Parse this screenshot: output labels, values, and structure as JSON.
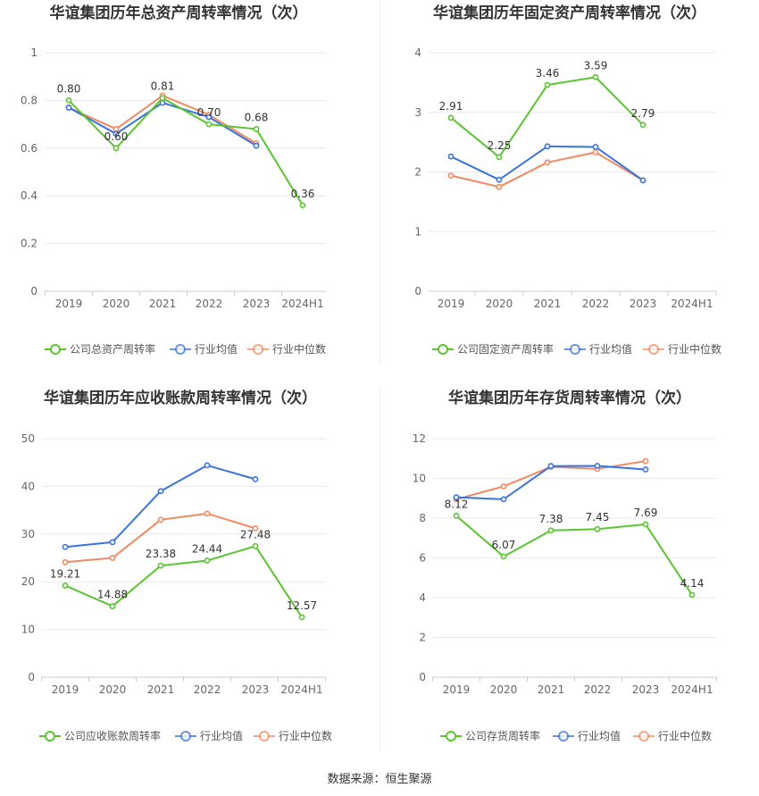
{
  "source_text": "数据来源：恒生聚源",
  "colors": {
    "company": "#5BC531",
    "avg": "#3A73DD",
    "median": "#F28A61"
  },
  "chart_data": [
    {
      "type": "line",
      "title": "华谊集团历年总资产周转率情况（次）",
      "categories": [
        "2019",
        "2020",
        "2021",
        "2022",
        "2023",
        "2024H1"
      ],
      "ylim": [
        0,
        1
      ],
      "yticks": [
        "0",
        "0.2",
        "0.4",
        "0.6",
        "0.8",
        "1"
      ],
      "ytick_values": [
        0,
        0.2,
        0.4,
        0.6,
        0.8,
        1
      ],
      "series": [
        {
          "name": "公司总资产周转率",
          "role": "company",
          "values": [
            0.8,
            0.6,
            0.81,
            0.7,
            0.68,
            0.36
          ],
          "labels": [
            "0.80",
            "0.60",
            "0.81",
            "0.70",
            "0.68",
            "0.36"
          ]
        },
        {
          "name": "行业均值",
          "role": "avg",
          "values": [
            0.77,
            0.66,
            0.79,
            0.73,
            0.61,
            null
          ]
        },
        {
          "name": "行业中位数",
          "role": "median",
          "values": [
            0.77,
            0.68,
            0.82,
            0.74,
            0.62,
            null
          ]
        }
      ]
    },
    {
      "type": "line",
      "title": "华谊集团历年固定资产周转率情况（次）",
      "categories": [
        "2019",
        "2020",
        "2021",
        "2022",
        "2023",
        "2024H1"
      ],
      "ylim": [
        0,
        4
      ],
      "yticks": [
        "0",
        "1",
        "2",
        "3",
        "4"
      ],
      "ytick_values": [
        0,
        1,
        2,
        3,
        4
      ],
      "series": [
        {
          "name": "公司固定资产周转率",
          "role": "company",
          "values": [
            2.91,
            2.25,
            3.46,
            3.59,
            2.79,
            null
          ],
          "labels": [
            "2.91",
            "2.25",
            "3.46",
            "3.59",
            "2.79",
            ""
          ]
        },
        {
          "name": "行业均值",
          "role": "avg",
          "values": [
            2.26,
            1.87,
            2.43,
            2.42,
            1.86,
            null
          ]
        },
        {
          "name": "行业中位数",
          "role": "median",
          "values": [
            1.94,
            1.75,
            2.16,
            2.33,
            1.86,
            null
          ]
        }
      ]
    },
    {
      "type": "line",
      "title": "华谊集团历年应收账款周转率情况（次）",
      "categories": [
        "2019",
        "2020",
        "2021",
        "2022",
        "2023",
        "2024H1"
      ],
      "ylim": [
        0,
        50
      ],
      "yticks": [
        "0",
        "10",
        "20",
        "30",
        "40",
        "50"
      ],
      "ytick_values": [
        0,
        10,
        20,
        30,
        40,
        50
      ],
      "series": [
        {
          "name": "公司应收账款周转率",
          "role": "company",
          "values": [
            19.21,
            14.88,
            23.38,
            24.44,
            27.48,
            12.57
          ],
          "labels": [
            "19.21",
            "14.88",
            "23.38",
            "24.44",
            "27.48",
            "12.57"
          ]
        },
        {
          "name": "行业均值",
          "role": "avg",
          "values": [
            27.3,
            28.3,
            39.0,
            44.4,
            41.5,
            null
          ]
        },
        {
          "name": "行业中位数",
          "role": "median",
          "values": [
            24.1,
            25.0,
            33.0,
            34.3,
            31.2,
            null
          ]
        }
      ]
    },
    {
      "type": "line",
      "title": "华谊集团历年存货周转率情况（次）",
      "categories": [
        "2019",
        "2020",
        "2021",
        "2022",
        "2023",
        "2024H1"
      ],
      "ylim": [
        0,
        12
      ],
      "yticks": [
        "0",
        "2",
        "4",
        "6",
        "8",
        "10",
        "12"
      ],
      "ytick_values": [
        0,
        2,
        4,
        6,
        8,
        10,
        12
      ],
      "series": [
        {
          "name": "公司存货周转率",
          "role": "company",
          "values": [
            8.12,
            6.07,
            7.38,
            7.45,
            7.69,
            4.14
          ],
          "labels": [
            "8.12",
            "6.07",
            "7.38",
            "7.45",
            "7.69",
            "4.14"
          ]
        },
        {
          "name": "行业均值",
          "role": "avg",
          "values": [
            9.05,
            8.95,
            10.62,
            10.63,
            10.45,
            null
          ]
        },
        {
          "name": "行业中位数",
          "role": "median",
          "values": [
            8.95,
            9.6,
            10.58,
            10.48,
            10.87,
            null
          ]
        }
      ]
    }
  ]
}
